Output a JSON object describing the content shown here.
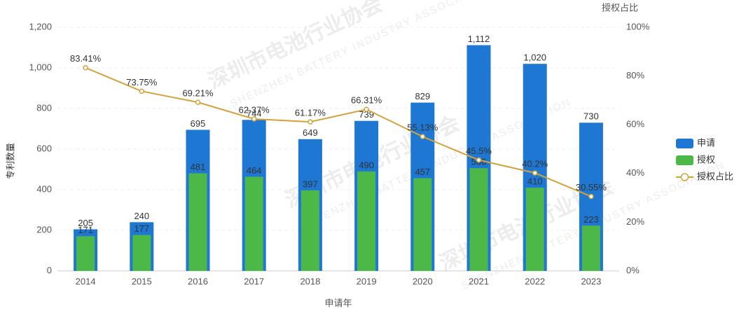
{
  "chart_data": {
    "type": "bar-line",
    "x_label": "申请年",
    "y_label": "专利数量",
    "y2_label": "授权占比",
    "watermark": [
      "深圳市电池行业协会",
      "SHENZHEN BATTERY INDUSTRY ASSOCIATION"
    ],
    "categories": [
      "2014",
      "2015",
      "2016",
      "2017",
      "2018",
      "2019",
      "2020",
      "2021",
      "2022",
      "2023"
    ],
    "series": [
      {
        "name": "申请",
        "type": "bar",
        "color": "#1f77d4",
        "values": [
          205,
          240,
          695,
          744,
          649,
          739,
          829,
          1112,
          1020,
          730
        ],
        "value_labels": [
          "205",
          "240",
          "695",
          "744",
          "649",
          "739",
          "829",
          "1,112",
          "1,020",
          "730"
        ]
      },
      {
        "name": "授权",
        "type": "bar",
        "color": "#4cb848",
        "values": [
          171,
          177,
          481,
          464,
          397,
          490,
          457,
          506,
          410,
          223
        ]
      },
      {
        "name": "授权占比",
        "type": "line",
        "axis": "y2",
        "color": "#d4a23a",
        "values": [
          83.41,
          73.75,
          69.21,
          62.37,
          61.17,
          66.31,
          55.13,
          45.5,
          40.2,
          30.55
        ],
        "value_labels": [
          "83.41%",
          "73.75%",
          "69.21%",
          "62.37%",
          "61.17%",
          "66.31%",
          "55.13%",
          "45.5%",
          "40.2%",
          "30.55%"
        ]
      }
    ],
    "ylim": [
      0,
      1200
    ],
    "yticks": [
      0,
      200,
      400,
      600,
      800,
      {
        "value": 1000,
        "label": "1,000"
      },
      {
        "value": 1200,
        "label": "1,200"
      }
    ],
    "y2lim": [
      0,
      100
    ],
    "y2ticks": [
      {
        "value": 0,
        "label": "0%"
      },
      {
        "value": 20,
        "label": "20%"
      },
      {
        "value": 40,
        "label": "40%"
      },
      {
        "value": 60,
        "label": "60%"
      },
      {
        "value": 80,
        "label": "80%"
      },
      {
        "value": 100,
        "label": "100%"
      }
    ],
    "grid": true,
    "legend": "right"
  }
}
